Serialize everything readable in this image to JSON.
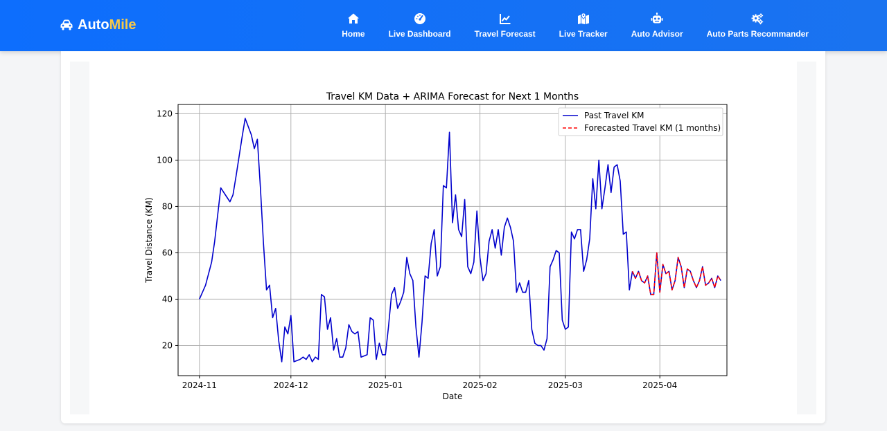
{
  "brand": {
    "prefix": "Auto",
    "accent": "Mile",
    "icon": "car-icon"
  },
  "nav": [
    {
      "label": "Home",
      "icon": "home-icon"
    },
    {
      "label": "Live Dashboard",
      "icon": "speedometer-icon"
    },
    {
      "label": "Travel Forecast",
      "icon": "line-chart-icon"
    },
    {
      "label": "Live Tracker",
      "icon": "map-marker-icon"
    },
    {
      "label": "Auto Advisor",
      "icon": "robot-icon"
    },
    {
      "label": "Auto Parts Recommander",
      "icon": "gears-icon"
    }
  ],
  "colors": {
    "nav_bg": "#0d6efd",
    "accent": "#f7c948",
    "past_series": "#0000cc",
    "forecast_series": "#ff0000"
  },
  "chart_data": {
    "type": "line",
    "title": "Travel KM Data + ARIMA Forecast for Next 1 Months",
    "xlabel": "Date",
    "ylabel": "Travel Distance (KM)",
    "x_ticks": [
      "2024-11",
      "2024-12",
      "2025-01",
      "2025-02",
      "2025-03",
      "2025-04"
    ],
    "y_ticks": [
      20,
      40,
      60,
      80,
      100,
      120
    ],
    "xlim": [
      "2024-10-25",
      "2025-04-23"
    ],
    "ylim": [
      7,
      124
    ],
    "grid": true,
    "legend_position": "top-right",
    "series": [
      {
        "name": "Past Travel KM",
        "style": "solid",
        "points": [
          [
            "2024-11-01",
            40
          ],
          [
            "2024-11-03",
            46
          ],
          [
            "2024-11-05",
            56
          ],
          [
            "2024-11-06",
            65
          ],
          [
            "2024-11-08",
            88
          ],
          [
            "2024-11-10",
            84
          ],
          [
            "2024-11-11",
            82
          ],
          [
            "2024-11-12",
            85
          ],
          [
            "2024-11-13",
            93
          ],
          [
            "2024-11-15",
            110
          ],
          [
            "2024-11-16",
            118
          ],
          [
            "2024-11-18",
            111
          ],
          [
            "2024-11-19",
            105
          ],
          [
            "2024-11-20",
            109
          ],
          [
            "2024-11-21",
            88
          ],
          [
            "2024-11-22",
            64
          ],
          [
            "2024-11-23",
            44
          ],
          [
            "2024-11-24",
            46
          ],
          [
            "2024-11-25",
            32
          ],
          [
            "2024-11-26",
            36
          ],
          [
            "2024-11-27",
            22
          ],
          [
            "2024-11-28",
            13
          ],
          [
            "2024-11-29",
            28
          ],
          [
            "2024-11-30",
            25
          ],
          [
            "2024-12-01",
            33
          ],
          [
            "2024-12-02",
            13
          ],
          [
            "2024-12-04",
            14
          ],
          [
            "2024-12-05",
            15
          ],
          [
            "2024-12-06",
            14
          ],
          [
            "2024-12-07",
            16
          ],
          [
            "2024-12-08",
            13
          ],
          [
            "2024-12-09",
            15
          ],
          [
            "2024-12-10",
            14
          ],
          [
            "2024-12-11",
            42
          ],
          [
            "2024-12-12",
            41
          ],
          [
            "2024-12-13",
            27
          ],
          [
            "2024-12-14",
            32
          ],
          [
            "2024-12-15",
            18
          ],
          [
            "2024-12-16",
            23
          ],
          [
            "2024-12-17",
            15
          ],
          [
            "2024-12-18",
            15
          ],
          [
            "2024-12-19",
            19
          ],
          [
            "2024-12-20",
            29
          ],
          [
            "2024-12-21",
            26
          ],
          [
            "2024-12-22",
            25
          ],
          [
            "2024-12-23",
            26
          ],
          [
            "2024-12-24",
            15
          ],
          [
            "2024-12-26",
            16
          ],
          [
            "2024-12-27",
            32
          ],
          [
            "2024-12-28",
            31
          ],
          [
            "2024-12-29",
            14
          ],
          [
            "2024-12-30",
            21
          ],
          [
            "2024-12-31",
            16
          ],
          [
            "2025-01-01",
            16
          ],
          [
            "2025-01-02",
            28
          ],
          [
            "2025-01-03",
            42
          ],
          [
            "2025-01-04",
            45
          ],
          [
            "2025-01-05",
            36
          ],
          [
            "2025-01-06",
            39
          ],
          [
            "2025-01-07",
            43
          ],
          [
            "2025-01-08",
            58
          ],
          [
            "2025-01-09",
            51
          ],
          [
            "2025-01-10",
            48
          ],
          [
            "2025-01-11",
            28
          ],
          [
            "2025-01-12",
            15
          ],
          [
            "2025-01-13",
            30
          ],
          [
            "2025-01-14",
            50
          ],
          [
            "2025-01-15",
            49
          ],
          [
            "2025-01-16",
            64
          ],
          [
            "2025-01-17",
            70
          ],
          [
            "2025-01-18",
            50
          ],
          [
            "2025-01-19",
            54
          ],
          [
            "2025-01-20",
            89
          ],
          [
            "2025-01-21",
            88
          ],
          [
            "2025-01-22",
            112
          ],
          [
            "2025-01-23",
            73
          ],
          [
            "2025-01-24",
            85
          ],
          [
            "2025-01-25",
            70
          ],
          [
            "2025-01-26",
            67
          ],
          [
            "2025-01-27",
            83
          ],
          [
            "2025-01-28",
            54
          ],
          [
            "2025-01-29",
            51
          ],
          [
            "2025-01-30",
            56
          ],
          [
            "2025-01-31",
            78
          ],
          [
            "2025-02-01",
            58
          ],
          [
            "2025-02-02",
            48
          ],
          [
            "2025-02-03",
            51
          ],
          [
            "2025-02-04",
            65
          ],
          [
            "2025-02-05",
            70
          ],
          [
            "2025-02-06",
            62
          ],
          [
            "2025-02-07",
            70
          ],
          [
            "2025-02-08",
            59
          ],
          [
            "2025-02-09",
            71
          ],
          [
            "2025-02-10",
            75
          ],
          [
            "2025-02-11",
            71
          ],
          [
            "2025-02-12",
            65
          ],
          [
            "2025-02-13",
            43
          ],
          [
            "2025-02-14",
            47
          ],
          [
            "2025-02-15",
            43
          ],
          [
            "2025-02-16",
            43
          ],
          [
            "2025-02-17",
            48
          ],
          [
            "2025-02-18",
            27
          ],
          [
            "2025-02-19",
            21
          ],
          [
            "2025-02-20",
            20
          ],
          [
            "2025-02-21",
            20
          ],
          [
            "2025-02-22",
            18
          ],
          [
            "2025-02-23",
            23
          ],
          [
            "2025-02-24",
            54
          ],
          [
            "2025-02-25",
            57
          ],
          [
            "2025-02-26",
            61
          ],
          [
            "2025-02-27",
            60
          ],
          [
            "2025-02-28",
            31
          ],
          [
            "2025-03-01",
            27
          ],
          [
            "2025-03-02",
            28
          ],
          [
            "2025-03-03",
            69
          ],
          [
            "2025-03-04",
            66
          ],
          [
            "2025-03-05",
            70
          ],
          [
            "2025-03-06",
            70
          ],
          [
            "2025-03-07",
            52
          ],
          [
            "2025-03-08",
            57
          ],
          [
            "2025-03-09",
            66
          ],
          [
            "2025-03-10",
            92
          ],
          [
            "2025-03-11",
            79
          ],
          [
            "2025-03-12",
            100
          ],
          [
            "2025-03-13",
            79
          ],
          [
            "2025-03-14",
            88
          ],
          [
            "2025-03-15",
            98
          ],
          [
            "2025-03-16",
            86
          ],
          [
            "2025-03-17",
            97
          ],
          [
            "2025-03-18",
            98
          ],
          [
            "2025-03-19",
            91
          ],
          [
            "2025-03-20",
            68
          ],
          [
            "2025-03-21",
            69
          ],
          [
            "2025-03-22",
            44
          ],
          [
            "2025-03-23",
            52
          ]
        ]
      },
      {
        "name": "Forecasted Travel KM (1 months)",
        "style": "dashed",
        "points": [
          [
            "2025-03-23",
            52
          ],
          [
            "2025-03-24",
            49
          ],
          [
            "2025-03-25",
            52
          ],
          [
            "2025-03-26",
            48
          ],
          [
            "2025-03-27",
            47
          ],
          [
            "2025-03-28",
            50
          ],
          [
            "2025-03-29",
            42
          ],
          [
            "2025-03-30",
            42
          ],
          [
            "2025-03-31",
            60
          ],
          [
            "2025-04-01",
            43
          ],
          [
            "2025-04-02",
            55
          ],
          [
            "2025-04-03",
            51
          ],
          [
            "2025-04-04",
            52
          ],
          [
            "2025-04-05",
            44
          ],
          [
            "2025-04-06",
            48
          ],
          [
            "2025-04-07",
            58
          ],
          [
            "2025-04-08",
            54
          ],
          [
            "2025-04-09",
            45
          ],
          [
            "2025-04-10",
            53
          ],
          [
            "2025-04-11",
            52
          ],
          [
            "2025-04-12",
            48
          ],
          [
            "2025-04-13",
            45
          ],
          [
            "2025-04-14",
            48
          ],
          [
            "2025-04-15",
            54
          ],
          [
            "2025-04-16",
            46
          ],
          [
            "2025-04-17",
            47
          ],
          [
            "2025-04-18",
            49
          ],
          [
            "2025-04-19",
            45
          ],
          [
            "2025-04-20",
            50
          ],
          [
            "2025-04-21",
            48
          ]
        ]
      }
    ]
  }
}
